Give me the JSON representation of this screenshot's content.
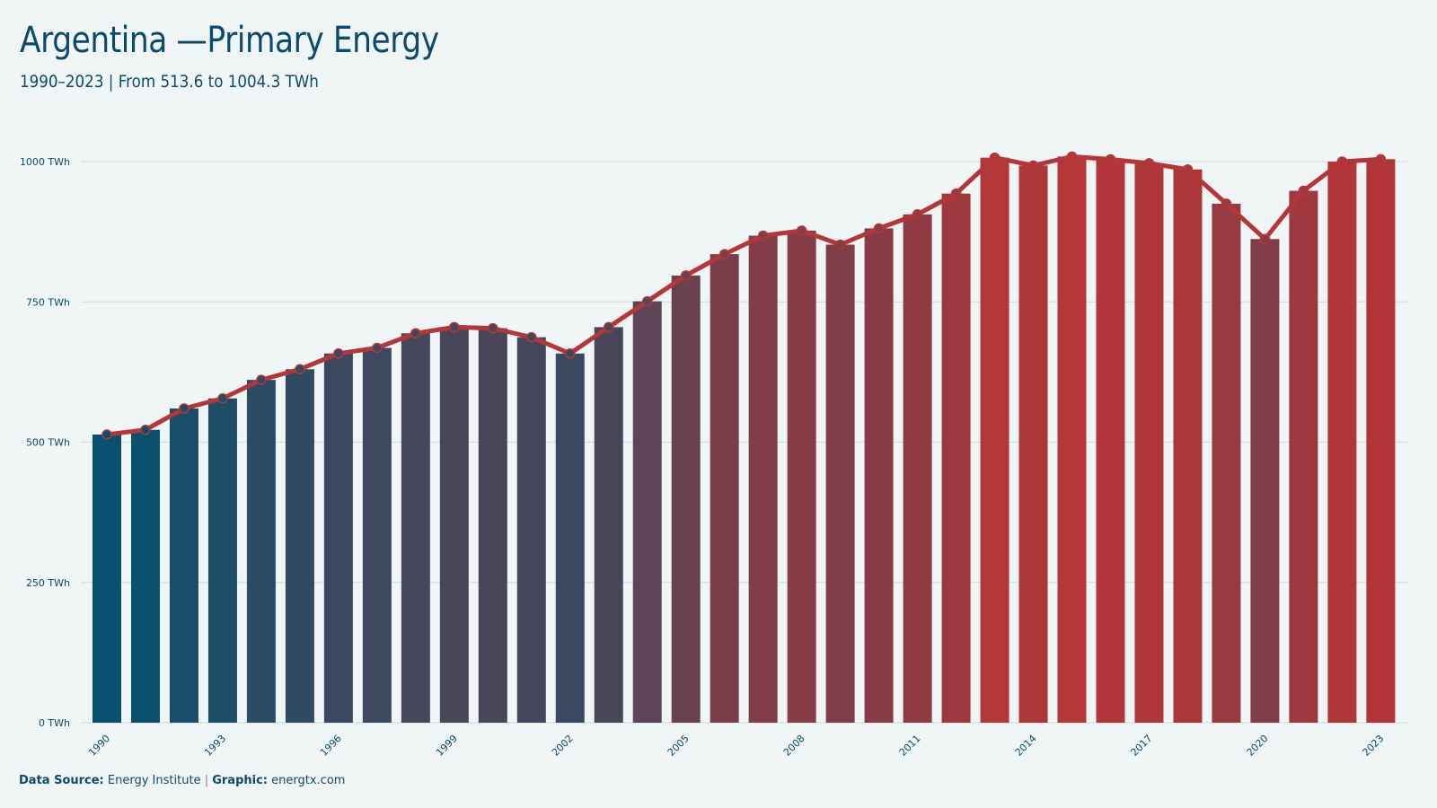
{
  "header": {
    "title": "Argentina —Primary Energy",
    "subtitle": "1990–2023 | From 513.6 to 1004.3 TWh"
  },
  "footer": {
    "source_label": "Data Source:",
    "source_value": "Energy Institute",
    "separator": "|",
    "graphic_label": "Graphic:",
    "graphic_value": "energtx.com"
  },
  "colors": {
    "low": "#08506f",
    "high": "#b43638",
    "line": "#b43638",
    "grid": "#cfd9dd",
    "text": "#0b4a6b"
  },
  "chart_data": {
    "type": "bar",
    "x": [
      1990,
      1991,
      1992,
      1993,
      1994,
      1995,
      1996,
      1997,
      1998,
      1999,
      2000,
      2001,
      2002,
      2003,
      2004,
      2005,
      2006,
      2007,
      2008,
      2009,
      2010,
      2011,
      2012,
      2013,
      2014,
      2015,
      2016,
      2017,
      2018,
      2019,
      2020,
      2021,
      2022,
      2023
    ],
    "values": [
      513.6,
      522,
      560,
      578,
      611,
      630,
      658,
      668,
      694,
      705,
      703,
      687,
      658,
      705,
      751,
      797,
      835,
      868,
      877,
      852,
      881,
      906,
      943,
      1007,
      993,
      1009,
      1004,
      997,
      986,
      925,
      862,
      948,
      1000,
      1004.3
    ],
    "line_overlay": true,
    "ylim": [
      0,
      1000
    ],
    "yticks": [
      {
        "value": 0,
        "label": "0 TWh"
      },
      {
        "value": 250,
        "label": "250 TWh"
      },
      {
        "value": 500,
        "label": "500 TWh"
      },
      {
        "value": 750,
        "label": "750 TWh"
      },
      {
        "value": 1000,
        "label": "1000 TWh"
      }
    ],
    "xticks": [
      1990,
      1993,
      1996,
      1999,
      2002,
      2005,
      2008,
      2011,
      2014,
      2017,
      2020,
      2023
    ],
    "grid": true,
    "legend": "none"
  }
}
